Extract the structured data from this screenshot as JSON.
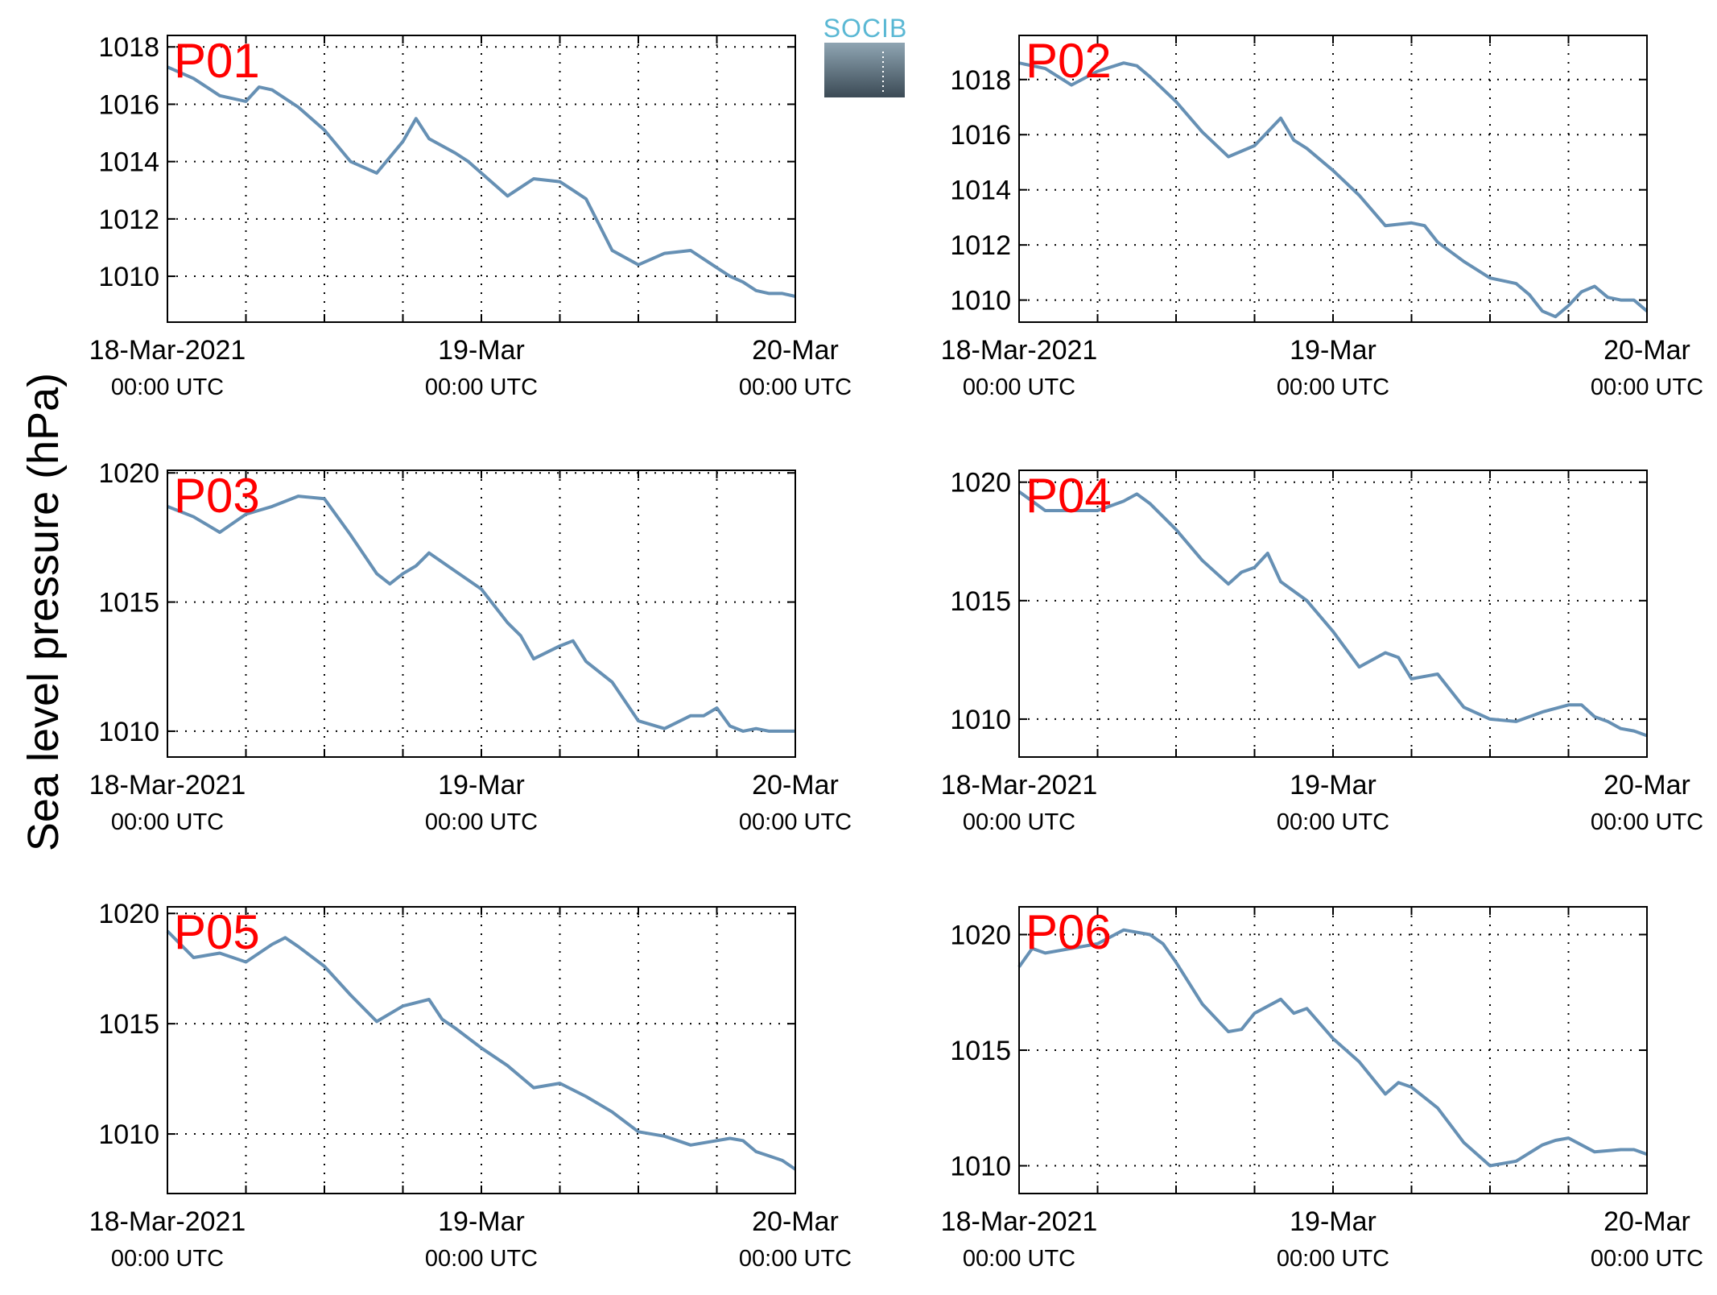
{
  "figure": {
    "ylabel": "Sea level pressure (hPa)",
    "logo_text": "SOCIB"
  },
  "colors": {
    "line": "#6690b4",
    "panel_label": "#ff0000",
    "logo": "#5ab8d4"
  },
  "chart_data": [
    {
      "type": "line",
      "label": "P01",
      "x_range": [
        "2021-03-18T00:00",
        "2021-03-20T00:00"
      ],
      "ylim": [
        1008.4,
        1018.4
      ],
      "yticks": [
        1010,
        1012,
        1014,
        1016,
        1018
      ],
      "xticks": [
        {
          "x": "2021-03-18T00:00",
          "label": "18-Mar-2021",
          "sublabel": "00:00 UTC"
        },
        {
          "x": "2021-03-19T00:00",
          "label": "19-Mar",
          "sublabel": "00:00 UTC"
        },
        {
          "x": "2021-03-20T00:00",
          "label": "20-Mar",
          "sublabel": "00:00 UTC"
        }
      ],
      "grid": true,
      "series": [
        {
          "x": [
            "2021-03-18T00:00",
            "2021-03-18T02:00",
            "2021-03-18T04:00",
            "2021-03-18T06:00",
            "2021-03-18T07:00",
            "2021-03-18T08:00",
            "2021-03-18T10:00",
            "2021-03-18T12:00",
            "2021-03-18T14:00",
            "2021-03-18T16:00",
            "2021-03-18T18:00",
            "2021-03-18T19:00",
            "2021-03-18T20:00",
            "2021-03-18T22:00",
            "2021-03-18T23:00",
            "2021-03-19T00:00",
            "2021-03-19T02:00",
            "2021-03-19T04:00",
            "2021-03-19T06:00",
            "2021-03-19T07:00",
            "2021-03-19T08:00",
            "2021-03-19T09:00",
            "2021-03-19T10:00",
            "2021-03-19T12:00",
            "2021-03-19T14:00",
            "2021-03-19T16:00",
            "2021-03-19T18:00",
            "2021-03-19T19:00",
            "2021-03-19T20:00",
            "2021-03-19T21:00",
            "2021-03-19T22:00",
            "2021-03-19T23:00",
            "2021-03-20T00:00"
          ],
          "values": [
            1017.3,
            1016.9,
            1016.3,
            1016.1,
            1016.6,
            1016.5,
            1015.9,
            1015.1,
            1014.0,
            1013.6,
            1014.7,
            1015.5,
            1014.8,
            1014.3,
            1014.0,
            1013.6,
            1012.8,
            1013.4,
            1013.3,
            1013.0,
            1012.7,
            1011.8,
            1010.9,
            1010.4,
            1010.8,
            1010.9,
            1010.3,
            1010.0,
            1009.8,
            1009.5,
            1009.4,
            1009.4,
            1009.3
          ]
        }
      ]
    },
    {
      "type": "line",
      "label": "P02",
      "x_range": [
        "2021-03-18T00:00",
        "2021-03-20T00:00"
      ],
      "ylim": [
        1009.2,
        1019.6
      ],
      "yticks": [
        1010,
        1012,
        1014,
        1016,
        1018
      ],
      "xticks": [
        {
          "x": "2021-03-18T00:00",
          "label": "18-Mar-2021",
          "sublabel": "00:00 UTC"
        },
        {
          "x": "2021-03-19T00:00",
          "label": "19-Mar",
          "sublabel": "00:00 UTC"
        },
        {
          "x": "2021-03-20T00:00",
          "label": "20-Mar",
          "sublabel": "00:00 UTC"
        }
      ],
      "grid": true,
      "series": [
        {
          "x": [
            "2021-03-18T00:00",
            "2021-03-18T02:00",
            "2021-03-18T04:00",
            "2021-03-18T06:00",
            "2021-03-18T08:00",
            "2021-03-18T09:00",
            "2021-03-18T10:00",
            "2021-03-18T12:00",
            "2021-03-18T14:00",
            "2021-03-18T16:00",
            "2021-03-18T18:00",
            "2021-03-18T20:00",
            "2021-03-18T21:00",
            "2021-03-18T22:00",
            "2021-03-19T00:00",
            "2021-03-19T02:00",
            "2021-03-19T04:00",
            "2021-03-19T06:00",
            "2021-03-19T07:00",
            "2021-03-19T08:00",
            "2021-03-19T10:00",
            "2021-03-19T12:00",
            "2021-03-19T14:00",
            "2021-03-19T15:00",
            "2021-03-19T16:00",
            "2021-03-19T17:00",
            "2021-03-19T18:00",
            "2021-03-19T19:00",
            "2021-03-19T20:00",
            "2021-03-19T21:00",
            "2021-03-19T22:00",
            "2021-03-19T23:00",
            "2021-03-20T00:00"
          ],
          "values": [
            1018.6,
            1018.4,
            1017.8,
            1018.3,
            1018.6,
            1018.5,
            1018.1,
            1017.2,
            1016.1,
            1015.2,
            1015.6,
            1016.6,
            1015.8,
            1015.5,
            1014.7,
            1013.8,
            1012.7,
            1012.8,
            1012.7,
            1012.1,
            1011.4,
            1010.8,
            1010.6,
            1010.2,
            1009.6,
            1009.4,
            1009.8,
            1010.3,
            1010.5,
            1010.1,
            1010.0,
            1010.0,
            1009.6
          ]
        }
      ]
    },
    {
      "type": "line",
      "label": "P03",
      "x_range": [
        "2021-03-18T00:00",
        "2021-03-20T00:00"
      ],
      "ylim": [
        1009.0,
        1020.1
      ],
      "yticks": [
        1010,
        1015,
        1020
      ],
      "xticks": [
        {
          "x": "2021-03-18T00:00",
          "label": "18-Mar-2021",
          "sublabel": "00:00 UTC"
        },
        {
          "x": "2021-03-19T00:00",
          "label": "19-Mar",
          "sublabel": "00:00 UTC"
        },
        {
          "x": "2021-03-20T00:00",
          "label": "20-Mar",
          "sublabel": "00:00 UTC"
        }
      ],
      "grid": true,
      "series": [
        {
          "x": [
            "2021-03-18T00:00",
            "2021-03-18T02:00",
            "2021-03-18T04:00",
            "2021-03-18T06:00",
            "2021-03-18T08:00",
            "2021-03-18T10:00",
            "2021-03-18T12:00",
            "2021-03-18T14:00",
            "2021-03-18T16:00",
            "2021-03-18T17:00",
            "2021-03-18T18:00",
            "2021-03-18T19:00",
            "2021-03-18T20:00",
            "2021-03-18T22:00",
            "2021-03-19T00:00",
            "2021-03-19T02:00",
            "2021-03-19T03:00",
            "2021-03-19T04:00",
            "2021-03-19T06:00",
            "2021-03-19T07:00",
            "2021-03-19T08:00",
            "2021-03-19T10:00",
            "2021-03-19T12:00",
            "2021-03-19T14:00",
            "2021-03-19T16:00",
            "2021-03-19T17:00",
            "2021-03-19T18:00",
            "2021-03-19T19:00",
            "2021-03-19T20:00",
            "2021-03-19T21:00",
            "2021-03-19T22:00",
            "2021-03-19T23:00",
            "2021-03-20T00:00"
          ],
          "values": [
            1018.7,
            1018.3,
            1017.7,
            1018.4,
            1018.7,
            1019.1,
            1019.0,
            1017.6,
            1016.1,
            1015.7,
            1016.1,
            1016.4,
            1016.9,
            1016.2,
            1015.5,
            1014.2,
            1013.7,
            1012.8,
            1013.3,
            1013.5,
            1012.7,
            1011.9,
            1010.4,
            1010.1,
            1010.6,
            1010.6,
            1010.9,
            1010.2,
            1010.0,
            1010.1,
            1010.0,
            1010.0,
            1010.0
          ]
        }
      ]
    },
    {
      "type": "line",
      "label": "P04",
      "x_range": [
        "2021-03-18T00:00",
        "2021-03-20T00:00"
      ],
      "ylim": [
        1008.4,
        1020.5
      ],
      "yticks": [
        1010,
        1015,
        1020
      ],
      "xticks": [
        {
          "x": "2021-03-18T00:00",
          "label": "18-Mar-2021",
          "sublabel": "00:00 UTC"
        },
        {
          "x": "2021-03-19T00:00",
          "label": "19-Mar",
          "sublabel": "00:00 UTC"
        },
        {
          "x": "2021-03-20T00:00",
          "label": "20-Mar",
          "sublabel": "00:00 UTC"
        }
      ],
      "grid": true,
      "series": [
        {
          "x": [
            "2021-03-18T00:00",
            "2021-03-18T02:00",
            "2021-03-18T04:00",
            "2021-03-18T06:00",
            "2021-03-18T08:00",
            "2021-03-18T09:00",
            "2021-03-18T10:00",
            "2021-03-18T12:00",
            "2021-03-18T14:00",
            "2021-03-18T16:00",
            "2021-03-18T17:00",
            "2021-03-18T18:00",
            "2021-03-18T19:00",
            "2021-03-18T20:00",
            "2021-03-18T22:00",
            "2021-03-19T00:00",
            "2021-03-19T02:00",
            "2021-03-19T04:00",
            "2021-03-19T05:00",
            "2021-03-19T06:00",
            "2021-03-19T08:00",
            "2021-03-19T10:00",
            "2021-03-19T12:00",
            "2021-03-19T14:00",
            "2021-03-19T16:00",
            "2021-03-19T18:00",
            "2021-03-19T19:00",
            "2021-03-19T20:00",
            "2021-03-19T21:00",
            "2021-03-19T22:00",
            "2021-03-19T23:00",
            "2021-03-20T00:00"
          ],
          "values": [
            1019.6,
            1018.8,
            1018.8,
            1018.8,
            1019.2,
            1019.5,
            1019.1,
            1018.0,
            1016.7,
            1015.7,
            1016.2,
            1016.4,
            1017.0,
            1015.8,
            1015.0,
            1013.7,
            1012.2,
            1012.8,
            1012.6,
            1011.7,
            1011.9,
            1010.5,
            1010.0,
            1009.9,
            1010.3,
            1010.6,
            1010.6,
            1010.1,
            1009.9,
            1009.6,
            1009.5,
            1009.3
          ]
        }
      ]
    },
    {
      "type": "line",
      "label": "P05",
      "x_range": [
        "2021-03-18T00:00",
        "2021-03-20T00:00"
      ],
      "ylim": [
        1007.3,
        1020.3
      ],
      "yticks": [
        1010,
        1015,
        1020
      ],
      "xticks": [
        {
          "x": "2021-03-18T00:00",
          "label": "18-Mar-2021",
          "sublabel": "00:00 UTC"
        },
        {
          "x": "2021-03-19T00:00",
          "label": "19-Mar",
          "sublabel": "00:00 UTC"
        },
        {
          "x": "2021-03-20T00:00",
          "label": "20-Mar",
          "sublabel": "00:00 UTC"
        }
      ],
      "grid": true,
      "series": [
        {
          "x": [
            "2021-03-18T00:00",
            "2021-03-18T02:00",
            "2021-03-18T04:00",
            "2021-03-18T06:00",
            "2021-03-18T08:00",
            "2021-03-18T09:00",
            "2021-03-18T10:00",
            "2021-03-18T12:00",
            "2021-03-18T14:00",
            "2021-03-18T16:00",
            "2021-03-18T18:00",
            "2021-03-18T20:00",
            "2021-03-18T21:00",
            "2021-03-18T22:00",
            "2021-03-19T00:00",
            "2021-03-19T02:00",
            "2021-03-19T04:00",
            "2021-03-19T06:00",
            "2021-03-19T08:00",
            "2021-03-19T10:00",
            "2021-03-19T12:00",
            "2021-03-19T14:00",
            "2021-03-19T16:00",
            "2021-03-19T18:00",
            "2021-03-19T19:00",
            "2021-03-19T20:00",
            "2021-03-19T21:00",
            "2021-03-19T22:00",
            "2021-03-19T23:00",
            "2021-03-20T00:00"
          ],
          "values": [
            1019.2,
            1018.0,
            1018.2,
            1017.8,
            1018.6,
            1018.9,
            1018.5,
            1017.6,
            1016.3,
            1015.1,
            1015.8,
            1016.1,
            1015.2,
            1014.8,
            1013.9,
            1013.1,
            1012.1,
            1012.3,
            1011.7,
            1011.0,
            1010.1,
            1009.9,
            1009.5,
            1009.7,
            1009.8,
            1009.7,
            1009.2,
            1009.0,
            1008.8,
            1008.4
          ]
        }
      ]
    },
    {
      "type": "line",
      "label": "P06",
      "x_range": [
        "2021-03-18T00:00",
        "2021-03-20T00:00"
      ],
      "ylim": [
        1008.8,
        1021.2
      ],
      "yticks": [
        1010,
        1015,
        1020
      ],
      "xticks": [
        {
          "x": "2021-03-18T00:00",
          "label": "18-Mar-2021",
          "sublabel": "00:00 UTC"
        },
        {
          "x": "2021-03-19T00:00",
          "label": "19-Mar",
          "sublabel": "00:00 UTC"
        },
        {
          "x": "2021-03-20T00:00",
          "label": "20-Mar",
          "sublabel": "00:00 UTC"
        }
      ],
      "grid": true,
      "series": [
        {
          "x": [
            "2021-03-18T00:00",
            "2021-03-18T01:00",
            "2021-03-18T02:00",
            "2021-03-18T04:00",
            "2021-03-18T06:00",
            "2021-03-18T08:00",
            "2021-03-18T10:00",
            "2021-03-18T11:00",
            "2021-03-18T12:00",
            "2021-03-18T14:00",
            "2021-03-18T16:00",
            "2021-03-18T17:00",
            "2021-03-18T18:00",
            "2021-03-18T20:00",
            "2021-03-18T21:00",
            "2021-03-18T22:00",
            "2021-03-19T00:00",
            "2021-03-19T02:00",
            "2021-03-19T04:00",
            "2021-03-19T05:00",
            "2021-03-19T06:00",
            "2021-03-19T08:00",
            "2021-03-19T10:00",
            "2021-03-19T12:00",
            "2021-03-19T14:00",
            "2021-03-19T16:00",
            "2021-03-19T17:00",
            "2021-03-19T18:00",
            "2021-03-19T20:00",
            "2021-03-19T22:00",
            "2021-03-19T23:00",
            "2021-03-20T00:00"
          ],
          "values": [
            1018.6,
            1019.4,
            1019.2,
            1019.4,
            1019.6,
            1020.2,
            1020.0,
            1019.6,
            1018.8,
            1017.0,
            1015.8,
            1015.9,
            1016.6,
            1017.2,
            1016.6,
            1016.8,
            1015.5,
            1014.5,
            1013.1,
            1013.6,
            1013.4,
            1012.5,
            1011.0,
            1010.0,
            1010.2,
            1010.9,
            1011.1,
            1011.2,
            1010.6,
            1010.7,
            1010.7,
            1010.5
          ]
        }
      ]
    }
  ]
}
